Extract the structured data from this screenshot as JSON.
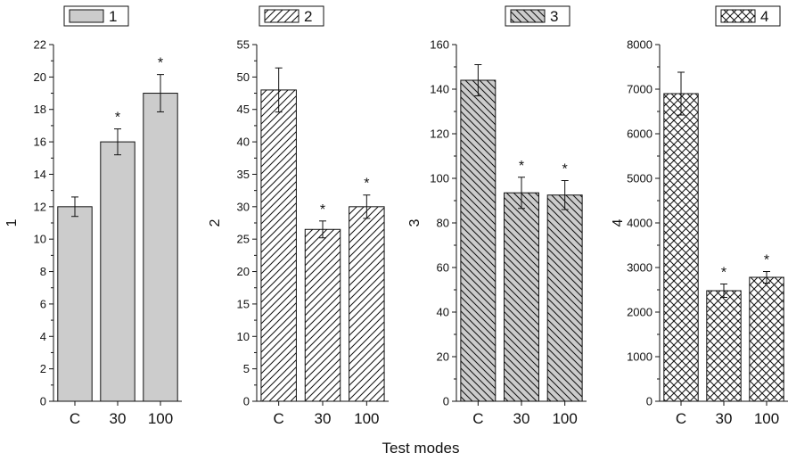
{
  "xlabel": "Test modes",
  "chart_data": [
    {
      "type": "bar",
      "legend": "1",
      "ylabel": "1",
      "categories": [
        "C",
        "30",
        "100"
      ],
      "values": [
        12.0,
        16.0,
        19.0
      ],
      "errors": [
        0.6,
        0.8,
        1.15
      ],
      "significant": [
        "",
        "*",
        "*"
      ],
      "ylim": [
        0,
        22
      ],
      "yticks": [
        0,
        2,
        4,
        6,
        8,
        10,
        12,
        14,
        16,
        18,
        20,
        22
      ],
      "fill": "gray-solid",
      "color": "#cccccc"
    },
    {
      "type": "bar",
      "legend": "2",
      "ylabel": "2",
      "categories": [
        "C",
        "30",
        "100"
      ],
      "values": [
        48.0,
        26.5,
        30.0
      ],
      "errors": [
        3.4,
        1.3,
        1.8
      ],
      "significant": [
        "",
        "*",
        "*"
      ],
      "ylim": [
        0,
        55
      ],
      "yticks": [
        0,
        5,
        10,
        15,
        20,
        25,
        30,
        35,
        40,
        45,
        50,
        55
      ],
      "fill": "forward-diagonal-hatch",
      "color": "#ffffff"
    },
    {
      "type": "bar",
      "legend": "3",
      "ylabel": "3",
      "categories": [
        "C",
        "30",
        "100"
      ],
      "values": [
        144,
        93.5,
        92.5
      ],
      "errors": [
        7,
        7,
        6.5
      ],
      "significant": [
        "",
        "*",
        "*"
      ],
      "ylim": [
        0,
        160
      ],
      "yticks": [
        0,
        20,
        40,
        60,
        80,
        100,
        120,
        140,
        160
      ],
      "fill": "backward-diagonal-hatch-gray",
      "color": "#cccccc"
    },
    {
      "type": "bar",
      "legend": "4",
      "ylabel": "4",
      "categories": [
        "C",
        "30",
        "100"
      ],
      "values": [
        6900,
        2480,
        2780
      ],
      "errors": [
        480,
        150,
        130
      ],
      "significant": [
        "",
        "*",
        "*"
      ],
      "ylim": [
        0,
        8000
      ],
      "yticks": [
        0,
        1000,
        2000,
        3000,
        4000,
        5000,
        6000,
        7000,
        8000
      ],
      "fill": "cross-hatch",
      "color": "#ffffff"
    }
  ]
}
